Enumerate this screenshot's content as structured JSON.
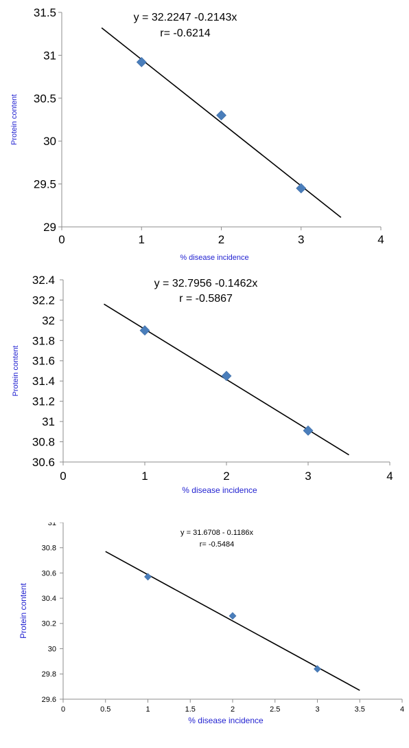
{
  "colors": {
    "marker": "#4a7ebb",
    "axis_title": "#1f1fd0",
    "trend_line": "#000000"
  },
  "chart_data": [
    {
      "type": "scatter",
      "xlabel": "% disease incidence",
      "ylabel": "Protein content",
      "xlim": [
        0,
        4
      ],
      "ylim": [
        29,
        31.5
      ],
      "x_ticks": [
        0,
        1,
        2,
        3,
        4
      ],
      "x_tick_labels": [
        "0",
        "1",
        "2",
        "3",
        "4"
      ],
      "y_ticks": [
        29,
        29.5,
        30,
        30.5,
        31,
        31.5
      ],
      "y_tick_labels": [
        "29",
        "29.5",
        "30",
        "30.5",
        "31",
        "31.5"
      ],
      "points": [
        {
          "x": 1,
          "y": 30.92
        },
        {
          "x": 2,
          "y": 30.3
        },
        {
          "x": 3,
          "y": 29.45
        }
      ],
      "trendline": {
        "x_range": [
          0.5,
          3.5
        ],
        "y_range": [
          31.32,
          29.11
        ]
      },
      "annotation_lines": [
        "y = 32.2247 -0.2143x",
        "r= -0.6214"
      ],
      "legend": "none",
      "grid": false
    },
    {
      "type": "scatter",
      "xlabel": "% disease incidence",
      "ylabel": "Protein content",
      "xlim": [
        0,
        4
      ],
      "ylim": [
        30.6,
        32.4
      ],
      "x_ticks": [
        0,
        1,
        2,
        3,
        4
      ],
      "x_tick_labels": [
        "0",
        "1",
        "2",
        "3",
        "4"
      ],
      "y_ticks": [
        30.6,
        30.8,
        31,
        31.2,
        31.4,
        31.6,
        31.8,
        32,
        32.2,
        32.4
      ],
      "y_tick_labels": [
        "30.6",
        "30.8",
        "31",
        "31.2",
        "31.4",
        "31.6",
        "31.8",
        "32",
        "32.2",
        "32.4"
      ],
      "points": [
        {
          "x": 1,
          "y": 31.9
        },
        {
          "x": 2,
          "y": 31.45
        },
        {
          "x": 3,
          "y": 30.91
        }
      ],
      "trendline": {
        "x_range": [
          0.5,
          3.5
        ],
        "y_range": [
          32.16,
          30.67
        ]
      },
      "annotation_lines": [
        "y = 32.7956 -0.1462x",
        "r = -0.5867"
      ],
      "legend": "none",
      "grid": false
    },
    {
      "type": "scatter",
      "xlabel": "% disease incidence",
      "ylabel": "Protein content",
      "xlim": [
        0,
        4
      ],
      "ylim": [
        29.6,
        31
      ],
      "x_ticks": [
        0,
        0.5,
        1,
        1.5,
        2,
        2.5,
        3,
        3.5,
        4
      ],
      "x_tick_labels": [
        "0",
        "0.5",
        "1",
        "1.5",
        "2",
        "2.5",
        "3",
        "3.5",
        "4"
      ],
      "y_ticks": [
        29.6,
        29.8,
        30,
        30.2,
        30.4,
        30.6,
        30.8,
        31
      ],
      "y_tick_labels": [
        "29.6",
        "29.8",
        "30",
        "30.2",
        "30.4",
        "30.6",
        "30.8",
        "31"
      ],
      "points": [
        {
          "x": 1,
          "y": 30.57
        },
        {
          "x": 2,
          "y": 30.26
        },
        {
          "x": 3,
          "y": 29.84
        }
      ],
      "trendline": {
        "x_range": [
          0.5,
          3.5
        ],
        "y_range": [
          30.77,
          29.67
        ]
      },
      "annotation_lines": [
        "y = 31.6708  - 0.1186x",
        "r= -0.5484"
      ],
      "legend": "none",
      "grid": false
    }
  ]
}
